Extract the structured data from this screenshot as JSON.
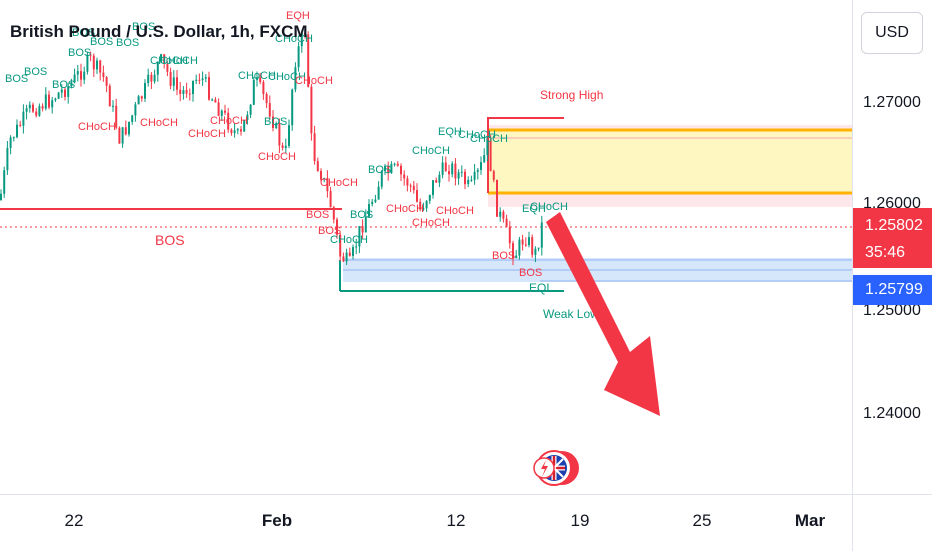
{
  "chart": {
    "title": "British Pound / U.S. Dollar, 1h, FXCM",
    "currency_button": "USD",
    "price_ticks": [
      "1.27000",
      "1.26000",
      "1.25000",
      "1.24000"
    ],
    "last_price": "1.25802",
    "countdown": "35:46",
    "crosshair_price": "1.25799",
    "time_ticks": [
      "22",
      "Feb",
      "12",
      "19",
      "25",
      "Mar"
    ],
    "annotations": {
      "strong_high": "Strong High",
      "weak_low": "Weak Low",
      "bos_main": "BOS",
      "eql": "EQL",
      "eqh": "EQH",
      "bos": "BOS",
      "choch": "CHoCH"
    },
    "colors": {
      "bull": "#089981",
      "bear": "#f23645",
      "supply_zone": "#fff59d",
      "demand_zone": "#bbdefb",
      "arrow": "#f23645",
      "crosshair_tag": "#2962ff"
    }
  }
}
